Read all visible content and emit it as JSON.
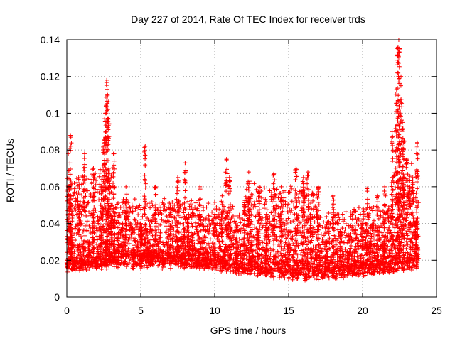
{
  "chart_data": {
    "type": "scatter",
    "title": "Day 227 of 2014, Rate Of TEC Index for receiver trds",
    "xlabel": "GPS time / hours",
    "ylabel": "ROTI / TECUs",
    "xlim": [
      0,
      25
    ],
    "ylim": [
      0,
      0.14
    ],
    "xticks": [
      0,
      5,
      10,
      15,
      20,
      25
    ],
    "yticks": [
      0,
      0.02,
      0.04,
      0.06,
      0.08,
      0.1,
      0.12,
      0.14
    ],
    "xtick_labels": [
      "0",
      "5",
      "10",
      "15",
      "20",
      "25"
    ],
    "ytick_labels": [
      "0",
      "0.02",
      "0.04",
      "0.06",
      "0.08",
      "0.1",
      "0.12",
      "0.14"
    ],
    "grid": true,
    "marker": "+",
    "color": "#ff0000",
    "data_x_range": [
      0,
      23.8
    ],
    "series": [
      {
        "name": "ROTI",
        "x": [
          0.05,
          0.1,
          0.2,
          0.25,
          0.3,
          0.35,
          0.5,
          0.8,
          1.0,
          1.2,
          1.5,
          1.8,
          2.0,
          2.3,
          2.5,
          2.6,
          2.7,
          2.75,
          2.8,
          2.85,
          3.0,
          3.2,
          3.5,
          4.0,
          4.5,
          5.0,
          5.3,
          5.5,
          6.0,
          6.5,
          7.0,
          7.5,
          8.0,
          8.2,
          8.5,
          9.0,
          9.5,
          10.0,
          10.5,
          10.8,
          11.0,
          11.5,
          12.0,
          12.3,
          12.5,
          13.0,
          13.5,
          14.0,
          14.5,
          15.0,
          15.5,
          16.0,
          16.3,
          16.5,
          17.0,
          17.5,
          18.0,
          18.5,
          19.0,
          19.5,
          20.0,
          20.3,
          20.5,
          21.0,
          21.5,
          22.0,
          22.3,
          22.4,
          22.45,
          22.5,
          22.6,
          22.7,
          22.8,
          23.0,
          23.2,
          23.4,
          23.6,
          23.7
        ],
        "y": [
          0.02,
          0.078,
          0.06,
          0.088,
          0.05,
          0.03,
          0.02,
          0.065,
          0.022,
          0.078,
          0.03,
          0.07,
          0.02,
          0.05,
          0.086,
          0.1,
          0.118,
          0.11,
          0.097,
          0.07,
          0.05,
          0.078,
          0.035,
          0.06,
          0.025,
          0.04,
          0.082,
          0.03,
          0.06,
          0.025,
          0.05,
          0.065,
          0.073,
          0.045,
          0.03,
          0.06,
          0.025,
          0.04,
          0.055,
          0.075,
          0.065,
          0.03,
          0.05,
          0.068,
          0.03,
          0.06,
          0.045,
          0.067,
          0.06,
          0.03,
          0.07,
          0.065,
          0.068,
          0.045,
          0.06,
          0.03,
          0.055,
          0.035,
          0.025,
          0.02,
          0.04,
          0.059,
          0.03,
          0.055,
          0.06,
          0.09,
          0.113,
          0.136,
          0.14,
          0.125,
          0.12,
          0.095,
          0.085,
          0.075,
          0.06,
          0.065,
          0.04,
          0.084
        ]
      }
    ]
  }
}
